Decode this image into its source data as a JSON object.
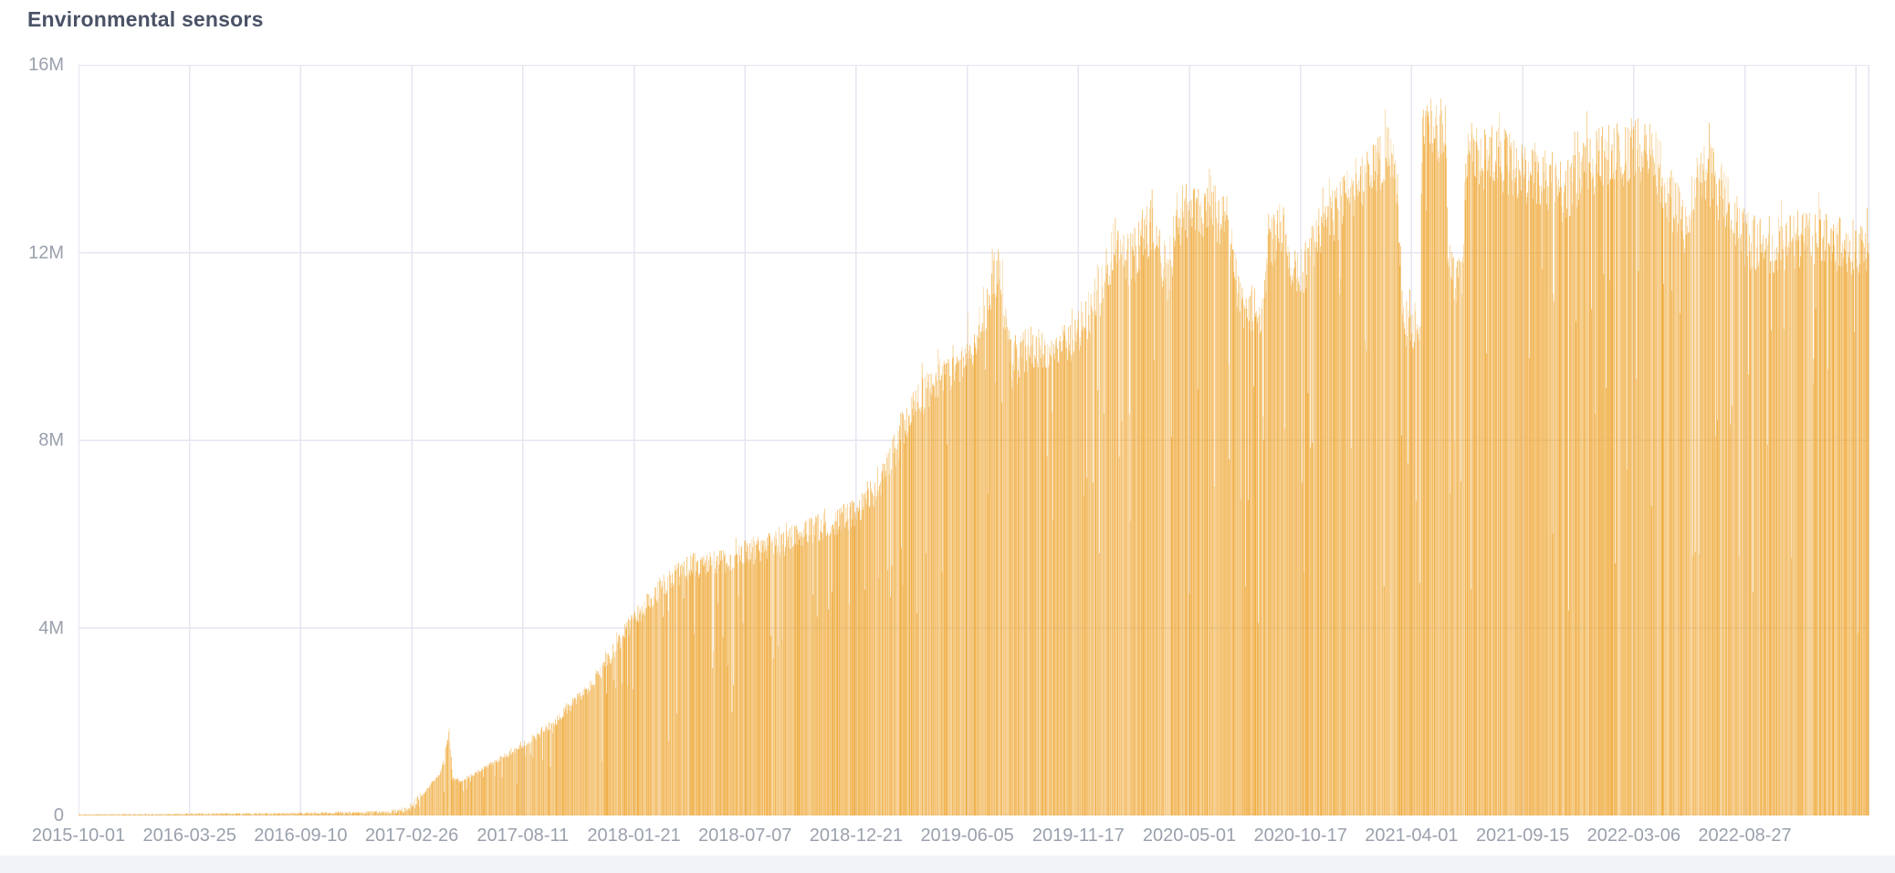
{
  "header": {
    "title": "Environmental sensors"
  },
  "colors": {
    "bar": "#eea228",
    "grid": "#e4e6f0",
    "axis_label": "#9aa1ad",
    "title": "#4a5266",
    "panel_background": "#ffffff",
    "footer_strip": "#f2f3f6"
  },
  "chart_data": {
    "type": "bar",
    "title": "Environmental sensors",
    "xlabel": "",
    "ylabel": "",
    "legend": "none",
    "grid": "on",
    "unit": "M",
    "ylim": [
      0,
      16000000
    ],
    "y_tick_labels": [
      "16M",
      "12M",
      "8M",
      "4M",
      "0"
    ],
    "y_tick_values": [
      16,
      12,
      8,
      4,
      0
    ],
    "x_tick_labels": [
      "2015-10-01",
      "2016-03-25",
      "2016-09-10",
      "2017-02-26",
      "2017-08-11",
      "2018-01-21",
      "2018-07-07",
      "2018-12-21",
      "2019-06-05",
      "2019-11-17",
      "2020-05-01",
      "2020-10-17",
      "2021-04-01",
      "2021-09-15",
      "2022-03-06",
      "2022-08-27"
    ],
    "x_start_date": "2015-10-01",
    "days_total": 2780,
    "x_gridline_count": 17,
    "envelope_anchors_day_valueM": [
      [
        0,
        0.02
      ],
      [
        160,
        0.035
      ],
      [
        345,
        0.05
      ],
      [
        480,
        0.08
      ],
      [
        510,
        0.15
      ],
      [
        525,
        0.3
      ],
      [
        543,
        0.62
      ],
      [
        562,
        0.95
      ],
      [
        575,
        1.85
      ],
      [
        580,
        0.82
      ],
      [
        592,
        0.74
      ],
      [
        643,
        1.15
      ],
      [
        691,
        1.55
      ],
      [
        742,
        2.1
      ],
      [
        798,
        2.9
      ],
      [
        861,
        4.3
      ],
      [
        911,
        5.1
      ],
      [
        954,
        5.5
      ],
      [
        996,
        5.55
      ],
      [
        1032,
        5.75
      ],
      [
        1095,
        6.0
      ],
      [
        1152,
        6.35
      ],
      [
        1203,
        6.65
      ],
      [
        1237,
        7.1
      ],
      [
        1258,
        7.7
      ],
      [
        1293,
        9.0
      ],
      [
        1336,
        9.6
      ],
      [
        1376,
        10.1
      ],
      [
        1407,
        11.0
      ],
      [
        1425,
        12.05
      ],
      [
        1435,
        11.2
      ],
      [
        1449,
        9.8
      ],
      [
        1477,
        10.35
      ],
      [
        1513,
        10.0
      ],
      [
        1548,
        10.55
      ],
      [
        1577,
        11.3
      ],
      [
        1591,
        11.7
      ],
      [
        1608,
        12.6
      ],
      [
        1633,
        12.2
      ],
      [
        1664,
        13.0
      ],
      [
        1690,
        11.9
      ],
      [
        1710,
        13.2
      ],
      [
        1761,
        13.4
      ],
      [
        1789,
        12.8
      ],
      [
        1803,
        11.2
      ],
      [
        1839,
        11.0
      ],
      [
        1846,
        12.7
      ],
      [
        1874,
        12.85
      ],
      [
        1885,
        11.8
      ],
      [
        1900,
        12.0
      ],
      [
        1924,
        12.9
      ],
      [
        1959,
        13.3
      ],
      [
        2001,
        14.1
      ],
      [
        2030,
        14.5
      ],
      [
        2047,
        13.8
      ],
      [
        2055,
        10.8
      ],
      [
        2081,
        10.7
      ],
      [
        2086,
        15.0
      ],
      [
        2103,
        15.25
      ],
      [
        2122,
        14.9
      ],
      [
        2126,
        11.85
      ],
      [
        2147,
        11.8
      ],
      [
        2153,
        14.5
      ],
      [
        2200,
        14.5
      ],
      [
        2235,
        14.2
      ],
      [
        2284,
        14.0
      ],
      [
        2306,
        13.7
      ],
      [
        2341,
        14.3
      ],
      [
        2412,
        14.6
      ],
      [
        2447,
        14.5
      ],
      [
        2468,
        13.6
      ],
      [
        2494,
        12.9
      ],
      [
        2508,
        13.9
      ],
      [
        2532,
        14.1
      ],
      [
        2560,
        13.4
      ],
      [
        2579,
        12.8
      ],
      [
        2603,
        12.5
      ],
      [
        2652,
        12.6
      ],
      [
        2709,
        12.7
      ],
      [
        2751,
        12.5
      ],
      [
        2779,
        12.6
      ]
    ],
    "forced_dips_day_valueM": [
      [
        1031,
        4.1
      ],
      [
        1140,
        4.7
      ],
      [
        1196,
        4.5
      ],
      [
        1340,
        5.2
      ],
      [
        1512,
        6.3
      ],
      [
        1560,
        6.8
      ],
      [
        1838,
        8.5
      ],
      [
        1908,
        9.0
      ],
      [
        2418,
        9.3
      ],
      [
        2592,
        9.4
      ],
      [
        2621,
        7.9
      ]
    ],
    "noise": {
      "seed": 11,
      "spike_prob": 0.04,
      "deep_dip_prob": 0.016,
      "mid_dip_prob": 0.05,
      "opacity_min": 0.42,
      "opacity_max": 1.0
    }
  }
}
